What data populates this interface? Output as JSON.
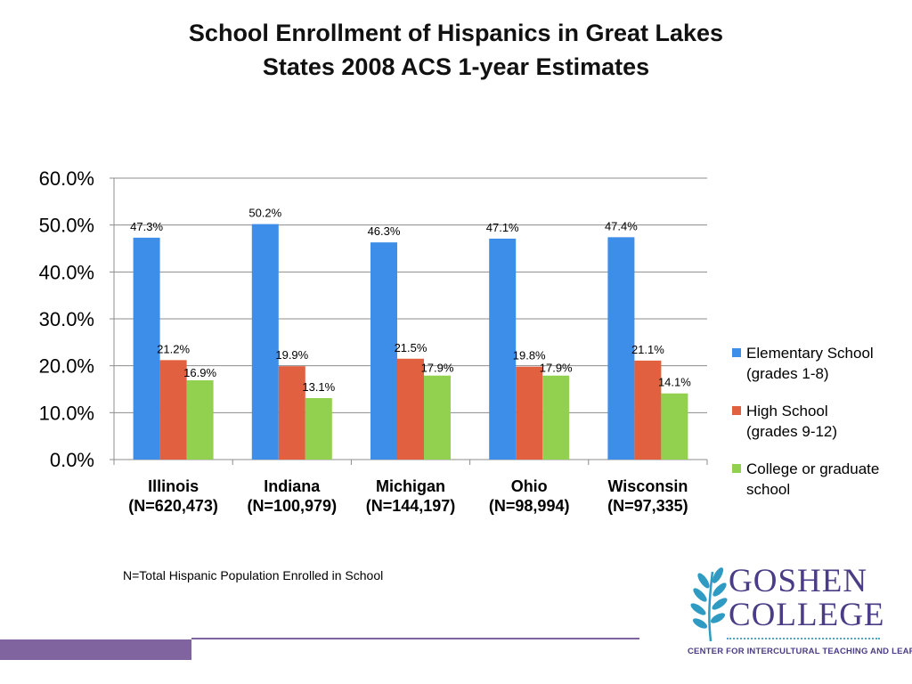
{
  "title": {
    "line1": "School Enrollment of Hispanics in Great Lakes",
    "line2": "States 2008 ACS 1-year Estimates"
  },
  "footnote": "N=Total Hispanic Population Enrolled in School",
  "logo": {
    "line1": "GOSHEN",
    "line2": "COLLEGE",
    "subtitle": "CENTER FOR INTERCULTURAL TEACHING AND LEARNING",
    "color": "#4b3c86",
    "leaf_color": "#2f9bc3"
  },
  "chart_data": {
    "type": "bar",
    "title": "",
    "xlabel": "",
    "ylabel": "",
    "ylim": [
      0,
      60
    ],
    "yticks": [
      "0.0%",
      "10.0%",
      "20.0%",
      "30.0%",
      "40.0%",
      "50.0%",
      "60.0%"
    ],
    "grid": true,
    "legend_position": "right",
    "categories": [
      {
        "name": "Illinois",
        "n": "(N=620,473)"
      },
      {
        "name": "Indiana",
        "n": "(N=100,979)"
      },
      {
        "name": "Michigan",
        "n": "(N=144,197)"
      },
      {
        "name": "Ohio",
        "n": "(N=98,994)"
      },
      {
        "name": "Wisconsin",
        "n": "(N=97,335)"
      }
    ],
    "series": [
      {
        "name": "Elementary School (grades 1-8)",
        "legend_lines": [
          "Elementary School",
          "(grades 1-8)"
        ],
        "color": "#3d8ee8",
        "values": [
          47.3,
          50.2,
          46.3,
          47.1,
          47.4
        ],
        "labels": [
          "47.3%",
          "50.2%",
          "46.3%",
          "47.1%",
          "47.4%"
        ]
      },
      {
        "name": "High School (grades 9-12)",
        "legend_lines": [
          "High School",
          "(grades 9-12)"
        ],
        "color": "#e06040",
        "values": [
          21.2,
          19.9,
          21.5,
          19.8,
          21.1
        ],
        "labels": [
          "21.2%",
          "19.9%",
          "21.5%",
          "19.8%",
          "21.1%"
        ]
      },
      {
        "name": "College or graduate school",
        "legend_lines": [
          "College or graduate",
          "school"
        ],
        "color": "#92d050",
        "values": [
          16.9,
          13.1,
          17.9,
          17.9,
          14.1
        ],
        "labels": [
          "16.9%",
          "13.1%",
          "17.9%",
          "17.9%",
          "14.1%"
        ]
      }
    ]
  }
}
